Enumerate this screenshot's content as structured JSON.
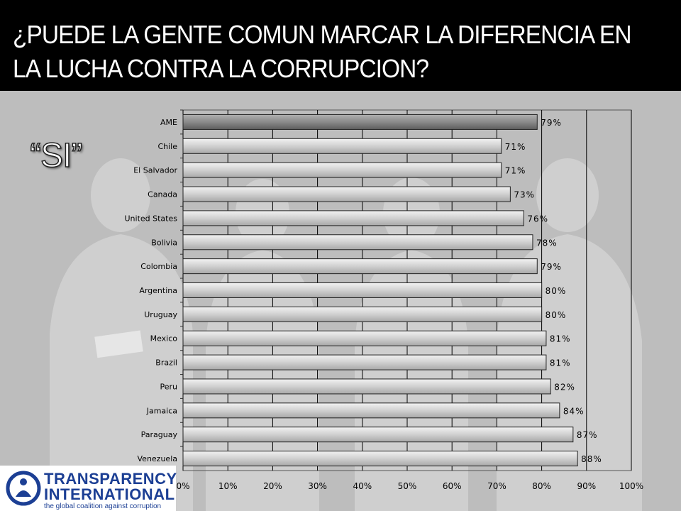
{
  "header": {
    "title_line1": "¿PUEDE LA GENTE COMUN MARCAR LA DIFERENCIA EN",
    "title_line2": "LA LUCHA CONTRA LA CORRUPCION?"
  },
  "subtitle": "“SI”",
  "chart_data": {
    "type": "bar",
    "orientation": "horizontal",
    "title": "¿PUEDE LA GENTE COMUN MARCAR LA DIFERENCIA EN LA LUCHA CONTRA LA CORRUPCION?",
    "subtitle": "“SI”",
    "categories": [
      "AME",
      "Chile",
      "El Salvador",
      "Canada",
      "United States",
      "Bolivia",
      "Colombia",
      "Argentina",
      "Uruguay",
      "Mexico",
      "Brazil",
      "Peru",
      "Jamaica",
      "Paraguay",
      "Venezuela"
    ],
    "values": [
      79,
      71,
      71,
      73,
      76,
      78,
      79,
      80,
      80,
      81,
      81,
      82,
      84,
      87,
      88
    ],
    "labels": [
      "79%",
      "71%",
      "71%",
      "73%",
      "76%",
      "78%",
      "79%",
      "80%",
      "80%",
      "81%",
      "81%",
      "82%",
      "84%",
      "87%",
      "88%"
    ],
    "highlight": "AME",
    "xlim": [
      0,
      100
    ],
    "xticks": [
      "0%",
      "10%",
      "20%",
      "30%",
      "40%",
      "50%",
      "60%",
      "70%",
      "80%",
      "90%",
      "100%"
    ],
    "xlabel": "",
    "ylabel": "",
    "grid": true,
    "colors": {
      "bar": "#d9d9d9",
      "highlight_bar": "#8c8c8c",
      "grid": "#000000"
    }
  },
  "logo": {
    "line1": "TRANSPARENCY",
    "line2": "INTERNATIONAL",
    "tagline": "the global coalition against corruption",
    "color": "#1c3f94"
  }
}
